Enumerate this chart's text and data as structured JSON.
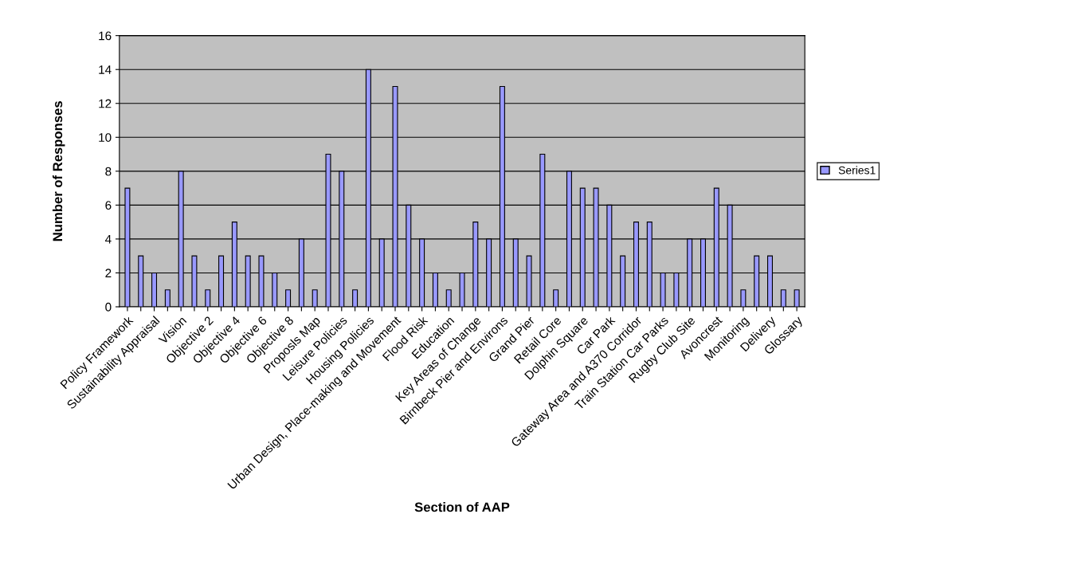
{
  "chart_data": {
    "type": "bar",
    "xlabel": "Section of AAP",
    "ylabel": "Number of Responses",
    "categories": [
      "Policy Framework",
      null,
      "Sustainability Appraisal",
      null,
      "Vision",
      null,
      "Objective 2",
      null,
      "Objective 4",
      null,
      "Objective 6",
      null,
      "Objective 8",
      null,
      "Proposls Map",
      null,
      "Leisure Policies",
      null,
      "Housing Policies",
      null,
      "Urban Design, Place-making and Movement",
      null,
      "Flood Risk",
      null,
      "Education",
      null,
      "Key Areas of Change",
      null,
      "Birnbeck Pier and Environs",
      null,
      "Grand Pier",
      null,
      "Retail Core",
      null,
      "Dolphin Square",
      null,
      "Car Park",
      null,
      "Gateway Area and A370 Corridor",
      null,
      "Train Station Car Parks",
      null,
      "Rugby Club Site",
      null,
      "Avoncrest",
      null,
      "Monitoring",
      null,
      "Delivery",
      null,
      "Glossary"
    ],
    "series": [
      {
        "name": "Series1",
        "color": "#9999ff",
        "values": [
          7,
          3,
          2,
          1,
          8,
          3,
          1,
          3,
          5,
          3,
          3,
          2,
          1,
          4,
          1,
          9,
          8,
          1,
          14,
          4,
          13,
          6,
          4,
          2,
          1,
          2,
          5,
          4,
          13,
          4,
          3,
          9,
          1,
          8,
          7,
          7,
          6,
          3,
          5,
          5,
          2,
          2,
          4,
          4,
          7,
          6,
          1,
          3,
          3,
          1,
          1
        ]
      }
    ],
    "ylim": [
      0,
      16
    ],
    "yticks": [
      0,
      2,
      4,
      6,
      8,
      10,
      12,
      14,
      16
    ],
    "grid": "y",
    "legend": "right"
  }
}
